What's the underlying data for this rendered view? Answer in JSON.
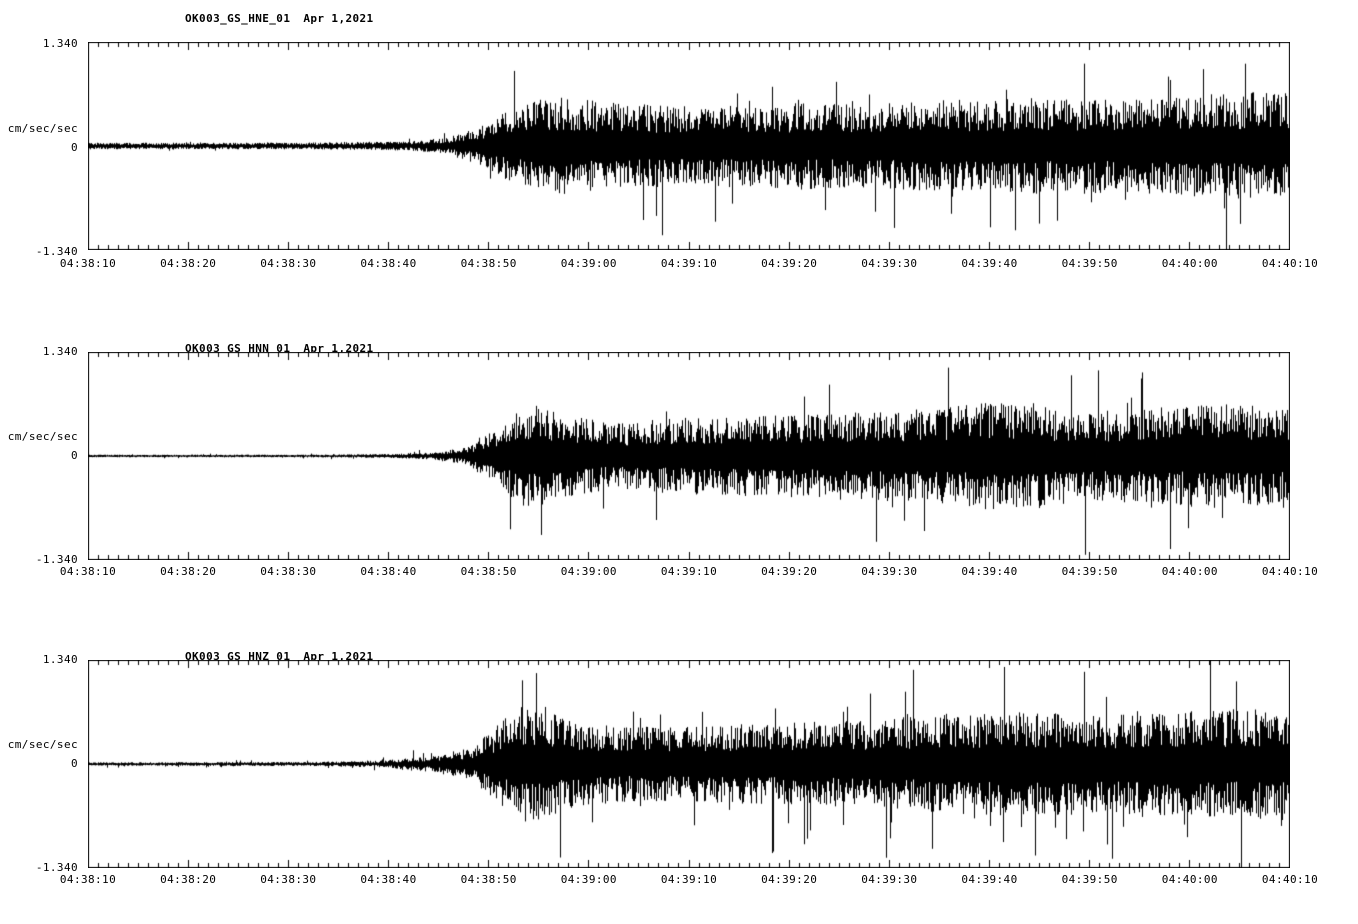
{
  "page": {
    "background": "#ffffff",
    "foreground": "#000000",
    "trace_color": "#000000"
  },
  "chart_data": [
    {
      "type": "line",
      "subtype": "seismogram",
      "title": "OK003_GS_HNE_01",
      "date": "Apr 1,2021",
      "y_unit": "cm/sec/sec",
      "y_tick_labels": [
        "1.340",
        "0",
        "-1.340"
      ],
      "ylim": [
        -1.34,
        1.34
      ],
      "x_tick_labels": [
        "04:38:10",
        "04:38:20",
        "04:38:30",
        "04:38:40",
        "04:38:50",
        "04:39:00",
        "04:39:10",
        "04:39:20",
        "04:39:30",
        "04:39:40",
        "04:39:50",
        "04:40:00",
        "04:40:10"
      ],
      "x_start": "04:38:10",
      "x_end": "04:40:10",
      "duration_s": 120,
      "major_tick_s": 10,
      "minor_tick_s": 1,
      "grid": false,
      "legend": "none",
      "seed": 101,
      "spike_prob": 0.03,
      "envelope_units": "[seconds after 04:38:10, amplitude cm/sec/sec]",
      "envelope": [
        [
          0,
          0.04
        ],
        [
          20,
          0.04
        ],
        [
          28,
          0.045
        ],
        [
          33,
          0.06
        ],
        [
          36,
          0.1
        ],
        [
          39,
          0.22
        ],
        [
          42,
          0.42
        ],
        [
          45,
          0.52
        ],
        [
          49,
          0.55
        ],
        [
          53,
          0.5
        ],
        [
          60,
          0.46
        ],
        [
          70,
          0.5
        ],
        [
          80,
          0.52
        ],
        [
          90,
          0.55
        ],
        [
          100,
          0.56
        ],
        [
          110,
          0.6
        ],
        [
          120,
          0.62
        ]
      ]
    },
    {
      "type": "line",
      "subtype": "seismogram",
      "title": "OK003_GS_HNN_01",
      "date": "Apr 1,2021",
      "y_unit": "cm/sec/sec",
      "y_tick_labels": [
        "1.340",
        "0",
        "-1.340"
      ],
      "ylim": [
        -1.34,
        1.34
      ],
      "x_tick_labels": [
        "04:38:10",
        "04:38:20",
        "04:38:30",
        "04:38:40",
        "04:38:50",
        "04:39:00",
        "04:39:10",
        "04:39:20",
        "04:39:30",
        "04:39:40",
        "04:39:50",
        "04:40:00",
        "04:40:10"
      ],
      "x_start": "04:38:10",
      "x_end": "04:40:10",
      "duration_s": 120,
      "major_tick_s": 10,
      "minor_tick_s": 1,
      "grid": false,
      "legend": "none",
      "seed": 202,
      "spike_prob": 0.035,
      "envelope_units": "[seconds after 04:38:10, amplitude cm/sec/sec]",
      "envelope": [
        [
          0,
          0.015
        ],
        [
          24,
          0.017
        ],
        [
          30,
          0.025
        ],
        [
          35,
          0.05
        ],
        [
          38,
          0.12
        ],
        [
          41,
          0.35
        ],
        [
          43,
          0.6
        ],
        [
          45,
          0.62
        ],
        [
          47,
          0.5
        ],
        [
          52,
          0.4
        ],
        [
          60,
          0.44
        ],
        [
          70,
          0.48
        ],
        [
          78,
          0.52
        ],
        [
          85,
          0.58
        ],
        [
          90,
          0.62
        ],
        [
          94,
          0.65
        ],
        [
          98,
          0.5
        ],
        [
          104,
          0.55
        ],
        [
          112,
          0.6
        ],
        [
          120,
          0.6
        ]
      ]
    },
    {
      "type": "line",
      "subtype": "seismogram",
      "title": "OK003_GS_HNZ_01",
      "date": "Apr 1,2021",
      "y_unit": "cm/sec/sec",
      "y_tick_labels": [
        "1.340",
        "0",
        "-1.340"
      ],
      "ylim": [
        -1.34,
        1.34
      ],
      "x_tick_labels": [
        "04:38:10",
        "04:38:20",
        "04:38:30",
        "04:38:40",
        "04:38:50",
        "04:39:00",
        "04:39:10",
        "04:39:20",
        "04:39:30",
        "04:39:40",
        "04:39:50",
        "04:40:00",
        "04:40:10"
      ],
      "x_start": "04:38:10",
      "x_end": "04:40:10",
      "duration_s": 120,
      "major_tick_s": 10,
      "minor_tick_s": 1,
      "grid": false,
      "legend": "none",
      "seed": 303,
      "spike_prob": 0.04,
      "envelope_units": "[seconds after 04:38:10, amplitude cm/sec/sec]",
      "envelope": [
        [
          0,
          0.02
        ],
        [
          22,
          0.024
        ],
        [
          29,
          0.04
        ],
        [
          34,
          0.09
        ],
        [
          38,
          0.18
        ],
        [
          41,
          0.45
        ],
        [
          43,
          0.68
        ],
        [
          45,
          0.7
        ],
        [
          48,
          0.55
        ],
        [
          53,
          0.45
        ],
        [
          60,
          0.43
        ],
        [
          68,
          0.47
        ],
        [
          76,
          0.52
        ],
        [
          84,
          0.58
        ],
        [
          90,
          0.62
        ],
        [
          96,
          0.6
        ],
        [
          102,
          0.58
        ],
        [
          108,
          0.62
        ],
        [
          114,
          0.64
        ],
        [
          120,
          0.66
        ]
      ]
    }
  ]
}
